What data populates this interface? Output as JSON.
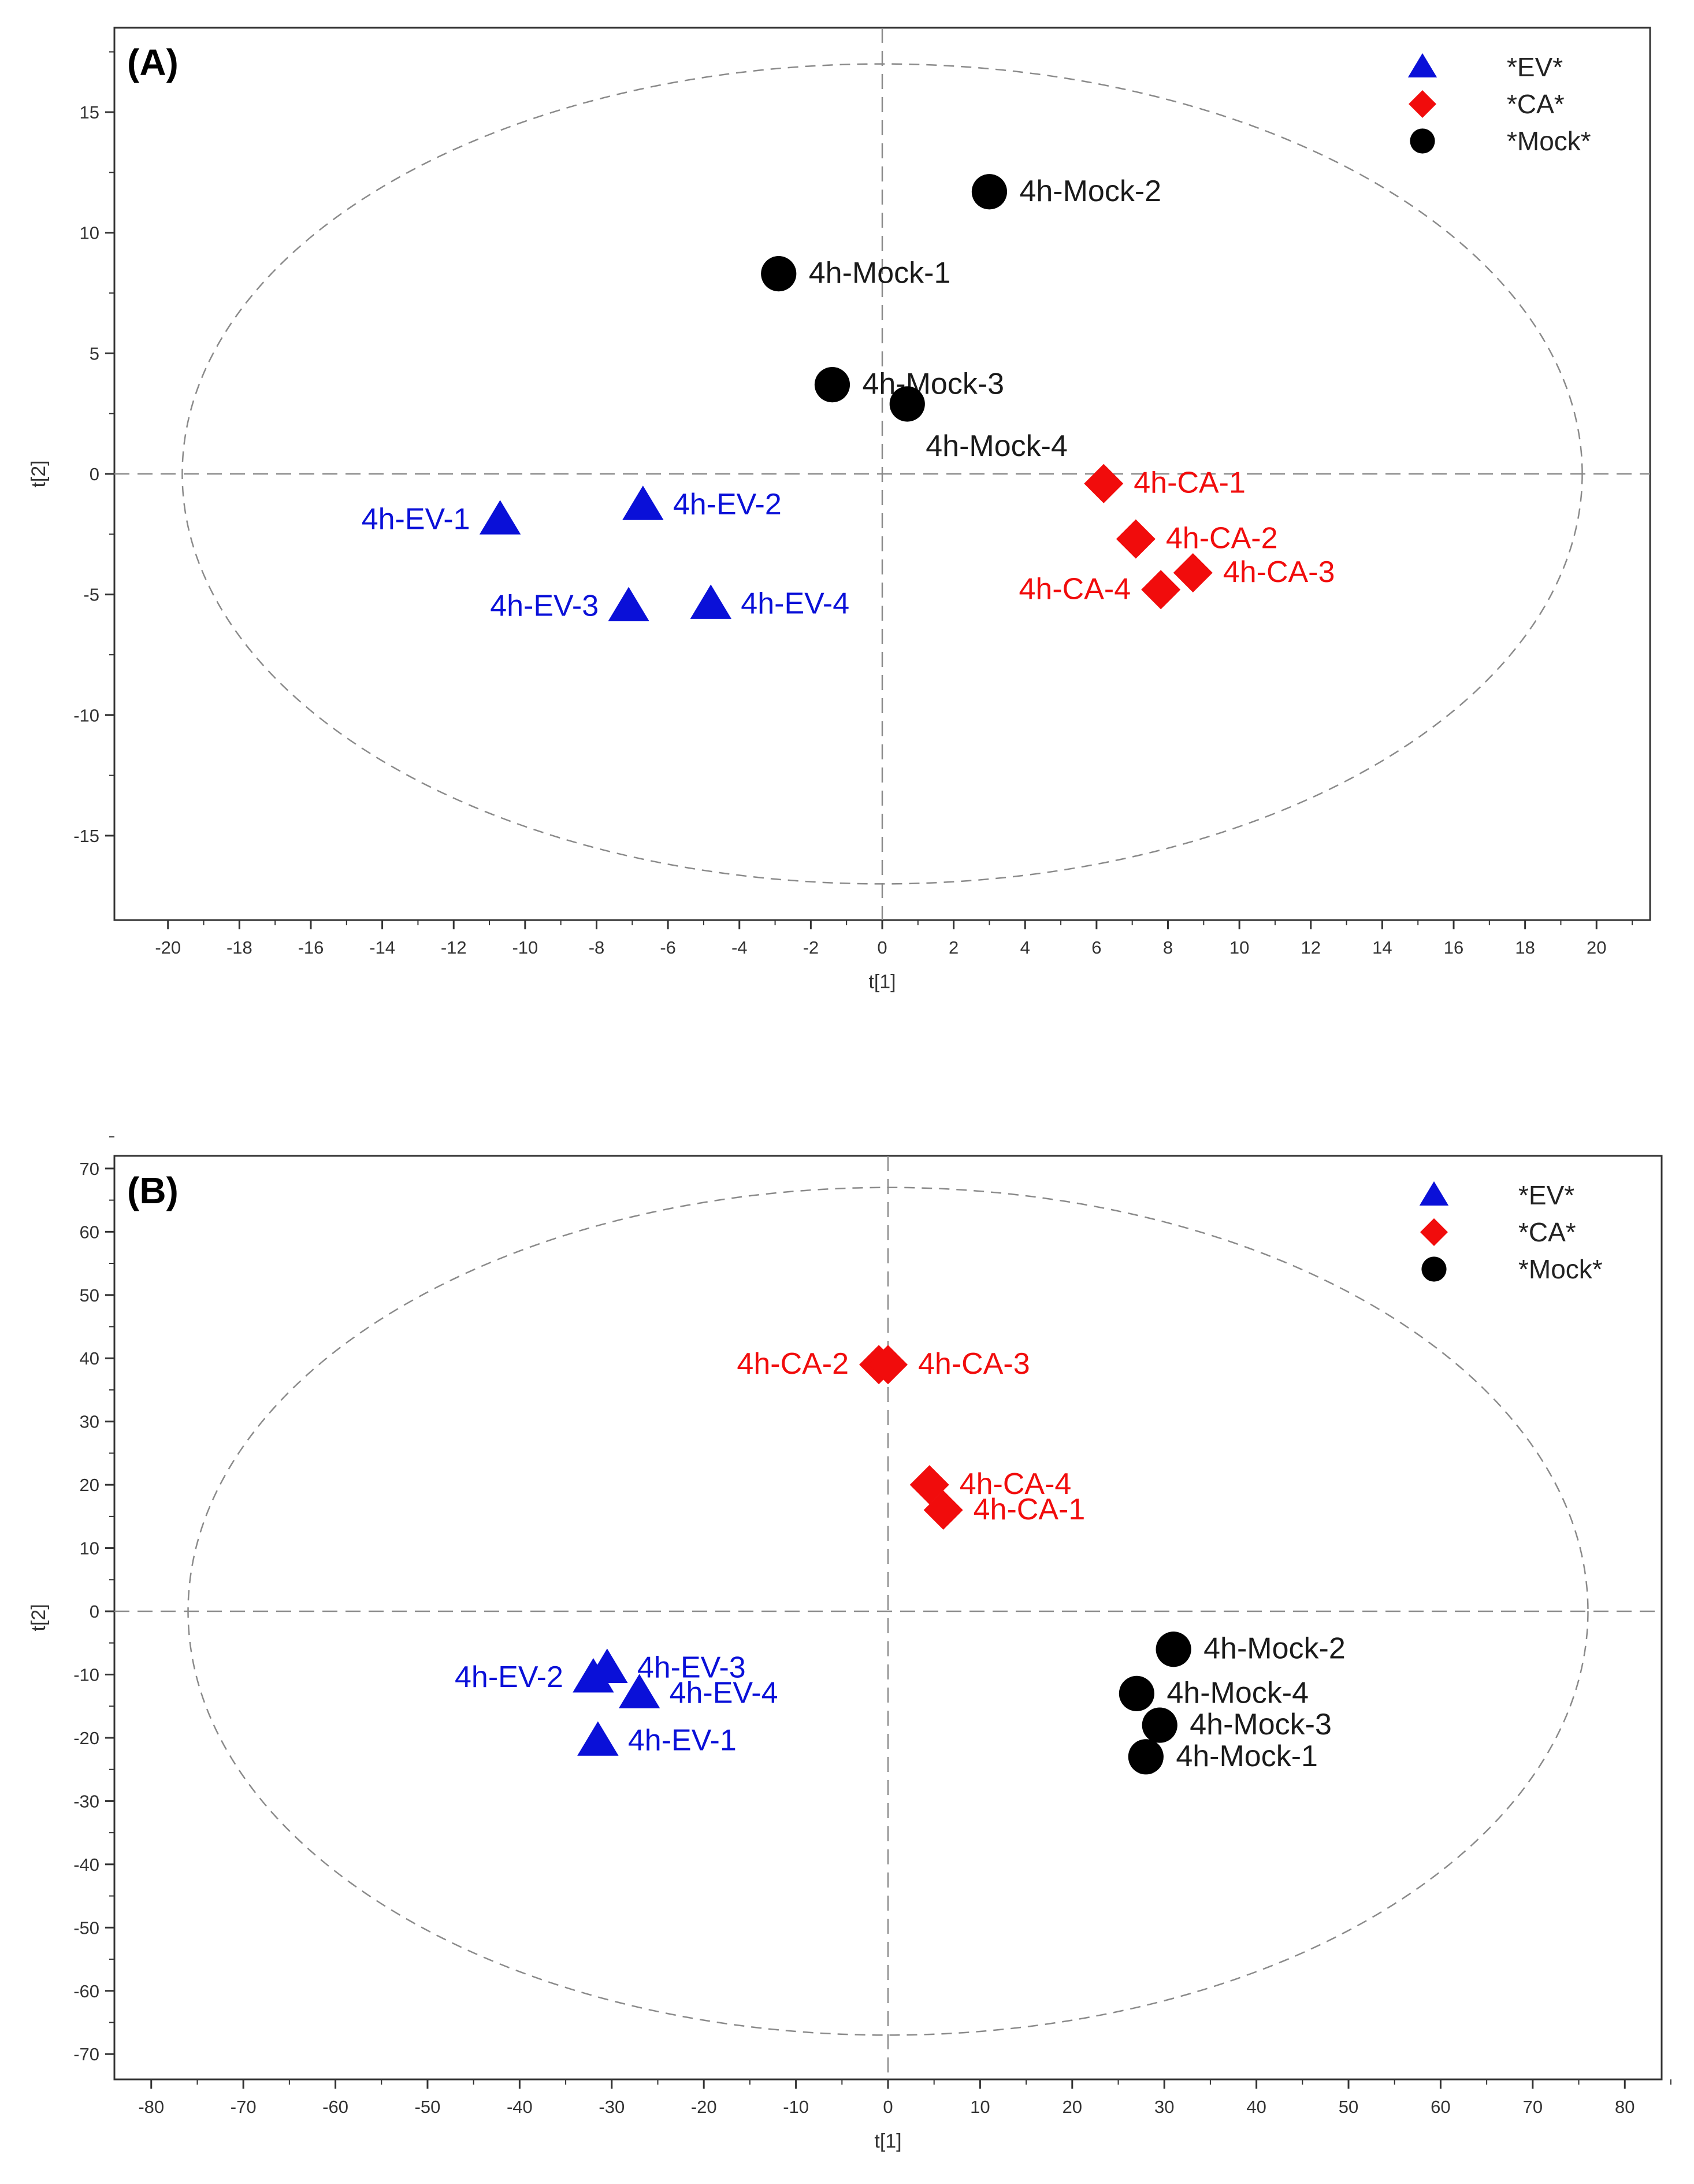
{
  "colors": {
    "EV": "#0a10d8",
    "CA": "#f10c0c",
    "Mock": "#000000",
    "axis": "#333333",
    "guide": "#8a8a8a"
  },
  "legend": [
    {
      "key": "EV",
      "label": "*EV*",
      "shape": "triangle"
    },
    {
      "key": "CA",
      "label": "*CA*",
      "shape": "diamond"
    },
    {
      "key": "Mock",
      "label": "*Mock*",
      "shape": "circle"
    }
  ],
  "chart_data": [
    {
      "type": "scatter",
      "panel_label": "(A)",
      "xlabel": "t[1]",
      "ylabel": "t[2]",
      "xlim": [
        -21.5,
        21.5
      ],
      "ylim": [
        -18.5,
        18.5
      ],
      "xticks": [
        -20,
        -18,
        -16,
        -14,
        -12,
        -10,
        -8,
        -6,
        -4,
        -2,
        0,
        2,
        4,
        6,
        8,
        10,
        12,
        14,
        16,
        18,
        20
      ],
      "yticks": [
        -15,
        -10,
        -5,
        0,
        5,
        10,
        15
      ],
      "grid": false,
      "legend_position": "top-right",
      "ellipse": {
        "rx": 19.6,
        "ry": 17
      },
      "points": [
        {
          "label": "4h-EV-1",
          "group": "EV",
          "x": -10.7,
          "y": -1.9,
          "label_side": "left"
        },
        {
          "label": "4h-EV-2",
          "group": "EV",
          "x": -6.7,
          "y": -1.3,
          "label_side": "right"
        },
        {
          "label": "4h-EV-3",
          "group": "EV",
          "x": -7.1,
          "y": -5.5,
          "label_side": "left"
        },
        {
          "label": "4h-EV-4",
          "group": "EV",
          "x": -4.8,
          "y": -5.4,
          "label_side": "right"
        },
        {
          "label": "4h-CA-1",
          "group": "CA",
          "x": 6.2,
          "y": -0.4,
          "label_side": "right"
        },
        {
          "label": "4h-CA-2",
          "group": "CA",
          "x": 7.1,
          "y": -2.7,
          "label_side": "right"
        },
        {
          "label": "4h-CA-3",
          "group": "CA",
          "x": 8.7,
          "y": -4.1,
          "label_side": "right"
        },
        {
          "label": "4h-CA-4",
          "group": "CA",
          "x": 7.8,
          "y": -4.8,
          "label_side": "left"
        },
        {
          "label": "4h-Mock-1",
          "group": "Mock",
          "x": -2.9,
          "y": 8.3,
          "label_side": "right"
        },
        {
          "label": "4h-Mock-2",
          "group": "Mock",
          "x": 3.0,
          "y": 11.7,
          "label_side": "right"
        },
        {
          "label": "4h-Mock-3",
          "group": "Mock",
          "x": -1.4,
          "y": 3.7,
          "label_side": "right"
        },
        {
          "label": "4h-Mock-4",
          "group": "Mock",
          "x": 0.7,
          "y": 2.9,
          "label_side": "below"
        }
      ]
    },
    {
      "type": "scatter",
      "panel_label": "(B)",
      "xlabel": "t[1]",
      "ylabel": "t[2]",
      "xlim": [
        -84,
        84
      ],
      "ylim": [
        -74,
        72
      ],
      "xticks": [
        -80,
        -70,
        -60,
        -50,
        -40,
        -30,
        -20,
        -10,
        0,
        10,
        20,
        30,
        40,
        50,
        60,
        70,
        80
      ],
      "yticks": [
        -70,
        -60,
        -50,
        -40,
        -30,
        -20,
        -10,
        0,
        10,
        20,
        30,
        40,
        50,
        60,
        70
      ],
      "grid": false,
      "legend_position": "top-right",
      "ellipse": {
        "rx": 76,
        "ry": 67
      },
      "points": [
        {
          "label": "4h-EV-1",
          "group": "EV",
          "x": -31.5,
          "y": -20.5,
          "label_side": "right"
        },
        {
          "label": "4h-EV-2",
          "group": "EV",
          "x": -32,
          "y": -10.5,
          "label_side": "left"
        },
        {
          "label": "4h-EV-3",
          "group": "EV",
          "x": -30.5,
          "y": -9,
          "label_side": "right"
        },
        {
          "label": "4h-EV-4",
          "group": "EV",
          "x": -27,
          "y": -13,
          "label_side": "right"
        },
        {
          "label": "4h-CA-1",
          "group": "CA",
          "x": 6,
          "y": 16,
          "label_side": "right"
        },
        {
          "label": "4h-CA-2",
          "group": "CA",
          "x": -1,
          "y": 39,
          "label_side": "left"
        },
        {
          "label": "4h-CA-3",
          "group": "CA",
          "x": 0,
          "y": 39,
          "label_side": "right"
        },
        {
          "label": "4h-CA-4",
          "group": "CA",
          "x": 4.5,
          "y": 20,
          "label_side": "right"
        },
        {
          "label": "4h-Mock-1",
          "group": "Mock",
          "x": 28,
          "y": -23,
          "label_side": "right"
        },
        {
          "label": "4h-Mock-2",
          "group": "Mock",
          "x": 31,
          "y": -6,
          "label_side": "right"
        },
        {
          "label": "4h-Mock-3",
          "group": "Mock",
          "x": 29.5,
          "y": -18,
          "label_side": "right"
        },
        {
          "label": "4h-Mock-4",
          "group": "Mock",
          "x": 27,
          "y": -13,
          "label_side": "right"
        }
      ]
    }
  ]
}
